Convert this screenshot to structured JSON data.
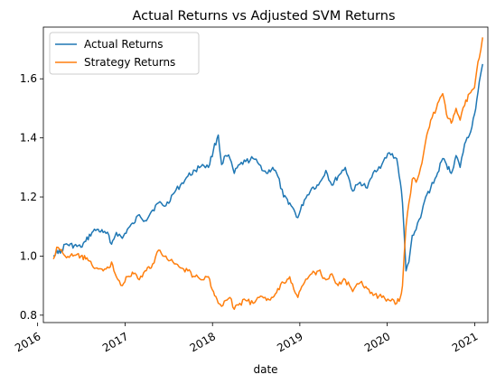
{
  "chart_data": {
    "type": "line",
    "title": "Actual Returns vs Adjusted SVM Returns",
    "xlabel": "date",
    "ylabel": "",
    "xlim": [
      "2016-01-25",
      "2021-02-25"
    ],
    "ylim": [
      0.775,
      1.775
    ],
    "x_ticks": [
      "2016",
      "2017",
      "2018",
      "2019",
      "2020",
      "2021"
    ],
    "y_ticks": [
      "0.8",
      "1.0",
      "1.2",
      "1.4",
      "1.6"
    ],
    "grid": false,
    "legend": "top-left",
    "series": [
      {
        "name": "Actual Returns",
        "color": "#1f77b4",
        "points": [
          [
            "2016-03-07",
            1.0
          ],
          [
            "2016-03-21",
            1.02
          ],
          [
            "2016-04-05",
            1.01
          ],
          [
            "2016-04-25",
            1.04
          ],
          [
            "2016-06-30",
            1.03
          ],
          [
            "2016-07-20",
            1.05
          ],
          [
            "2016-08-15",
            1.08
          ],
          [
            "2016-09-05",
            1.09
          ],
          [
            "2016-10-01",
            1.08
          ],
          [
            "2016-10-25",
            1.07
          ],
          [
            "2016-11-05",
            1.04
          ],
          [
            "2016-11-25",
            1.08
          ],
          [
            "2016-12-20",
            1.06
          ],
          [
            "2017-01-10",
            1.09
          ],
          [
            "2017-02-05",
            1.11
          ],
          [
            "2017-03-01",
            1.14
          ],
          [
            "2017-03-25",
            1.12
          ],
          [
            "2017-04-20",
            1.15
          ],
          [
            "2017-05-20",
            1.18
          ],
          [
            "2017-06-20",
            1.17
          ],
          [
            "2017-07-20",
            1.21
          ],
          [
            "2017-08-20",
            1.24
          ],
          [
            "2017-09-20",
            1.27
          ],
          [
            "2017-10-20",
            1.29
          ],
          [
            "2017-11-20",
            1.31
          ],
          [
            "2017-12-15",
            1.3
          ],
          [
            "2018-01-05",
            1.36
          ],
          [
            "2018-01-25",
            1.41
          ],
          [
            "2018-02-08",
            1.31
          ],
          [
            "2018-02-25",
            1.34
          ],
          [
            "2018-03-15",
            1.33
          ],
          [
            "2018-04-02",
            1.28
          ],
          [
            "2018-04-25",
            1.31
          ],
          [
            "2018-05-20",
            1.32
          ],
          [
            "2018-06-20",
            1.33
          ],
          [
            "2018-07-15",
            1.31
          ],
          [
            "2018-08-15",
            1.28
          ],
          [
            "2018-09-10",
            1.3
          ],
          [
            "2018-10-01",
            1.27
          ],
          [
            "2018-10-25",
            1.2
          ],
          [
            "2018-11-20",
            1.18
          ],
          [
            "2018-12-24",
            1.13
          ],
          [
            "2019-01-20",
            1.19
          ],
          [
            "2019-02-20",
            1.23
          ],
          [
            "2019-03-20",
            1.24
          ],
          [
            "2019-04-20",
            1.29
          ],
          [
            "2019-05-15",
            1.24
          ],
          [
            "2019-06-10",
            1.27
          ],
          [
            "2019-07-10",
            1.3
          ],
          [
            "2019-08-10",
            1.22
          ],
          [
            "2019-09-10",
            1.25
          ],
          [
            "2019-10-10",
            1.23
          ],
          [
            "2019-11-10",
            1.29
          ],
          [
            "2019-12-10",
            1.31
          ],
          [
            "2020-01-10",
            1.35
          ],
          [
            "2020-02-10",
            1.33
          ],
          [
            "2020-02-25",
            1.25
          ],
          [
            "2020-03-05",
            1.18
          ],
          [
            "2020-03-12",
            1.08
          ],
          [
            "2020-03-20",
            0.95
          ],
          [
            "2020-04-01",
            0.98
          ],
          [
            "2020-04-15",
            1.07
          ],
          [
            "2020-05-01",
            1.09
          ],
          [
            "2020-05-20",
            1.13
          ],
          [
            "2020-06-10",
            1.2
          ],
          [
            "2020-07-01",
            1.23
          ],
          [
            "2020-07-25",
            1.27
          ],
          [
            "2020-08-20",
            1.33
          ],
          [
            "2020-09-05",
            1.31
          ],
          [
            "2020-09-25",
            1.28
          ],
          [
            "2020-10-15",
            1.34
          ],
          [
            "2020-11-01",
            1.3
          ],
          [
            "2020-11-20",
            1.38
          ],
          [
            "2020-12-10",
            1.41
          ],
          [
            "2020-12-31",
            1.48
          ],
          [
            "2021-01-10",
            1.53
          ],
          [
            "2021-01-20",
            1.59
          ],
          [
            "2021-01-27",
            1.62
          ],
          [
            "2021-02-03",
            1.65
          ]
        ]
      },
      {
        "name": "Strategy Returns",
        "color": "#ff7f0e",
        "points": [
          [
            "2016-03-07",
            0.99
          ],
          [
            "2016-03-21",
            1.03
          ],
          [
            "2016-04-05",
            1.02
          ],
          [
            "2016-04-25",
            1.0
          ],
          [
            "2016-06-30",
            1.0
          ],
          [
            "2016-07-20",
            0.99
          ],
          [
            "2016-08-15",
            0.97
          ],
          [
            "2016-09-05",
            0.96
          ],
          [
            "2016-10-01",
            0.95
          ],
          [
            "2016-10-25",
            0.96
          ],
          [
            "2016-11-05",
            0.98
          ],
          [
            "2016-11-25",
            0.93
          ],
          [
            "2016-12-20",
            0.9
          ],
          [
            "2017-01-10",
            0.93
          ],
          [
            "2017-02-05",
            0.94
          ],
          [
            "2017-03-01",
            0.92
          ],
          [
            "2017-03-25",
            0.95
          ],
          [
            "2017-04-20",
            0.96
          ],
          [
            "2017-05-20",
            1.02
          ],
          [
            "2017-06-20",
            1.0
          ],
          [
            "2017-07-20",
            0.98
          ],
          [
            "2017-08-20",
            0.96
          ],
          [
            "2017-09-20",
            0.95
          ],
          [
            "2017-10-20",
            0.93
          ],
          [
            "2017-11-20",
            0.92
          ],
          [
            "2017-12-15",
            0.93
          ],
          [
            "2018-01-05",
            0.88
          ],
          [
            "2018-01-25",
            0.84
          ],
          [
            "2018-02-08",
            0.83
          ],
          [
            "2018-02-25",
            0.85
          ],
          [
            "2018-03-15",
            0.86
          ],
          [
            "2018-04-02",
            0.82
          ],
          [
            "2018-04-25",
            0.84
          ],
          [
            "2018-05-20",
            0.85
          ],
          [
            "2018-06-20",
            0.84
          ],
          [
            "2018-07-15",
            0.86
          ],
          [
            "2018-08-15",
            0.85
          ],
          [
            "2018-09-10",
            0.86
          ],
          [
            "2018-10-01",
            0.89
          ],
          [
            "2018-10-25",
            0.91
          ],
          [
            "2018-11-20",
            0.93
          ],
          [
            "2018-12-24",
            0.86
          ],
          [
            "2019-01-20",
            0.91
          ],
          [
            "2019-02-20",
            0.94
          ],
          [
            "2019-03-20",
            0.95
          ],
          [
            "2019-04-20",
            0.92
          ],
          [
            "2019-05-15",
            0.94
          ],
          [
            "2019-06-10",
            0.9
          ],
          [
            "2019-07-10",
            0.92
          ],
          [
            "2019-08-10",
            0.88
          ],
          [
            "2019-09-10",
            0.91
          ],
          [
            "2019-10-10",
            0.89
          ],
          [
            "2019-11-10",
            0.87
          ],
          [
            "2019-12-10",
            0.86
          ],
          [
            "2020-01-10",
            0.85
          ],
          [
            "2020-02-10",
            0.84
          ],
          [
            "2020-02-25",
            0.86
          ],
          [
            "2020-03-05",
            0.9
          ],
          [
            "2020-03-12",
            1.0
          ],
          [
            "2020-03-20",
            1.1
          ],
          [
            "2020-04-01",
            1.18
          ],
          [
            "2020-04-15",
            1.26
          ],
          [
            "2020-05-01",
            1.25
          ],
          [
            "2020-05-20",
            1.3
          ],
          [
            "2020-06-10",
            1.39
          ],
          [
            "2020-07-01",
            1.46
          ],
          [
            "2020-07-25",
            1.5
          ],
          [
            "2020-08-20",
            1.55
          ],
          [
            "2020-09-05",
            1.48
          ],
          [
            "2020-09-25",
            1.45
          ],
          [
            "2020-10-15",
            1.5
          ],
          [
            "2020-11-01",
            1.46
          ],
          [
            "2020-11-20",
            1.51
          ],
          [
            "2020-12-10",
            1.55
          ],
          [
            "2020-12-31",
            1.57
          ],
          [
            "2021-01-10",
            1.63
          ],
          [
            "2021-01-20",
            1.67
          ],
          [
            "2021-01-27",
            1.7
          ],
          [
            "2021-02-03",
            1.74
          ]
        ]
      }
    ]
  }
}
